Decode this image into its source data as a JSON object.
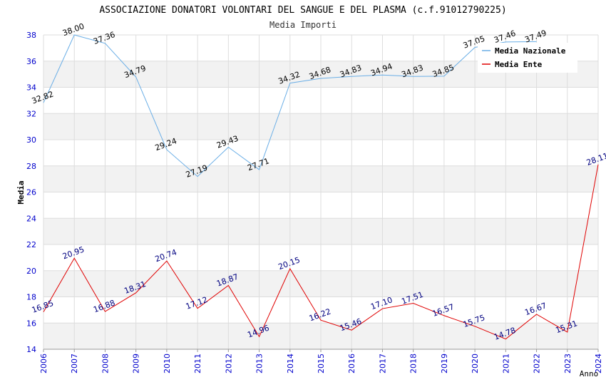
{
  "chart_data": {
    "type": "line",
    "title": "ASSOCIAZIONE DONATORI VOLONTARI DEL SANGUE E DEL PLASMA (c.f.91012790225)",
    "subtitle": "Media Importi",
    "xlabel": "Anno",
    "ylabel": "Media",
    "ylim": [
      14,
      38
    ],
    "yticks": [
      "14",
      "16",
      "18",
      "20",
      "22",
      "24",
      "26",
      "28",
      "30",
      "32",
      "34",
      "36",
      "38"
    ],
    "categories": [
      "2006",
      "2007",
      "2008",
      "2009",
      "2010",
      "2011",
      "2012",
      "2013",
      "2014",
      "2015",
      "2016",
      "2017",
      "2018",
      "2019",
      "2020",
      "2021",
      "2022",
      "2023",
      "2024"
    ],
    "grid": true,
    "legend_position": "top-right",
    "series": [
      {
        "name": "Media Nazionale",
        "color": "#6aaee6",
        "label_color": "#000000",
        "values": [
          32.82,
          38.0,
          37.36,
          34.79,
          29.24,
          27.19,
          29.43,
          27.71,
          34.32,
          34.68,
          34.83,
          34.94,
          34.83,
          34.85,
          37.05,
          37.46,
          37.49,
          null,
          null
        ],
        "labels": [
          "32.82",
          "38.00",
          "37.36",
          "34.79",
          "29.24",
          "27.19",
          "29.43",
          "27.71",
          "34.32",
          "34.68",
          "34.83",
          "34.94",
          "34.83",
          "34.85",
          "37.05",
          "37.46",
          "37.49",
          "",
          ""
        ]
      },
      {
        "name": "Media Ente",
        "color": "#e00000",
        "label_color": "#000080",
        "values": [
          16.85,
          20.95,
          16.88,
          18.31,
          20.74,
          17.12,
          18.87,
          14.96,
          20.15,
          16.22,
          15.46,
          17.1,
          17.51,
          16.57,
          15.75,
          14.78,
          16.67,
          15.31,
          28.11
        ],
        "labels": [
          "16.85",
          "20.95",
          "16.88",
          "18.31",
          "20.74",
          "17.12",
          "18.87",
          "14.96",
          "20.15",
          "16.22",
          "15.46",
          "17.10",
          "17.51",
          "16.57",
          "15.75",
          "14.78",
          "16.67",
          "15.31",
          "28.11"
        ]
      }
    ]
  }
}
